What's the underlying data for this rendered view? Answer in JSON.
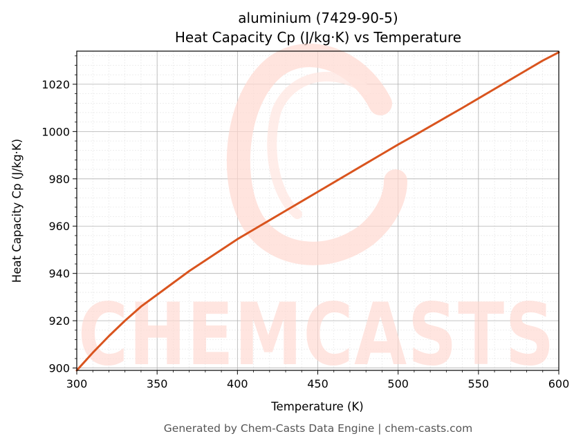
{
  "chart_data": {
    "type": "line",
    "title": "aluminium (7429-90-5)",
    "subtitle": "Heat Capacity Cp (J/kg·K) vs Temperature",
    "xlabel": "Temperature (K)",
    "ylabel": "Heat Capacity Cp (J/kg·K)",
    "xlim": [
      300,
      600
    ],
    "ylim": [
      899,
      1034
    ],
    "xticks": [
      300,
      350,
      400,
      450,
      500,
      550,
      600
    ],
    "yticks": [
      900,
      920,
      940,
      960,
      980,
      1000,
      1020
    ],
    "grid": true,
    "line_color": "#d9541e",
    "series": [
      {
        "x": [
          300,
          310,
          320,
          330,
          340,
          350,
          360,
          370,
          380,
          390,
          400,
          410,
          420,
          430,
          440,
          450,
          460,
          470,
          480,
          490,
          500,
          510,
          520,
          530,
          540,
          550,
          560,
          570,
          580,
          590,
          600
        ],
        "y": [
          899,
          906.5,
          913.5,
          920,
          926,
          931,
          936,
          941,
          945.5,
          950,
          954.5,
          958.5,
          962.5,
          966.5,
          970.5,
          974.5,
          978.5,
          982.5,
          986.5,
          990.5,
          994.5,
          998.3,
          1002.2,
          1006.1,
          1010,
          1014,
          1018,
          1022,
          1026,
          1030,
          1033.5
        ]
      }
    ]
  },
  "watermark": {
    "text": "CHEMCASTS",
    "color": "#ffd8d0"
  },
  "footer": {
    "text": "Generated by Chem-Casts Data Engine | chem-casts.com"
  }
}
